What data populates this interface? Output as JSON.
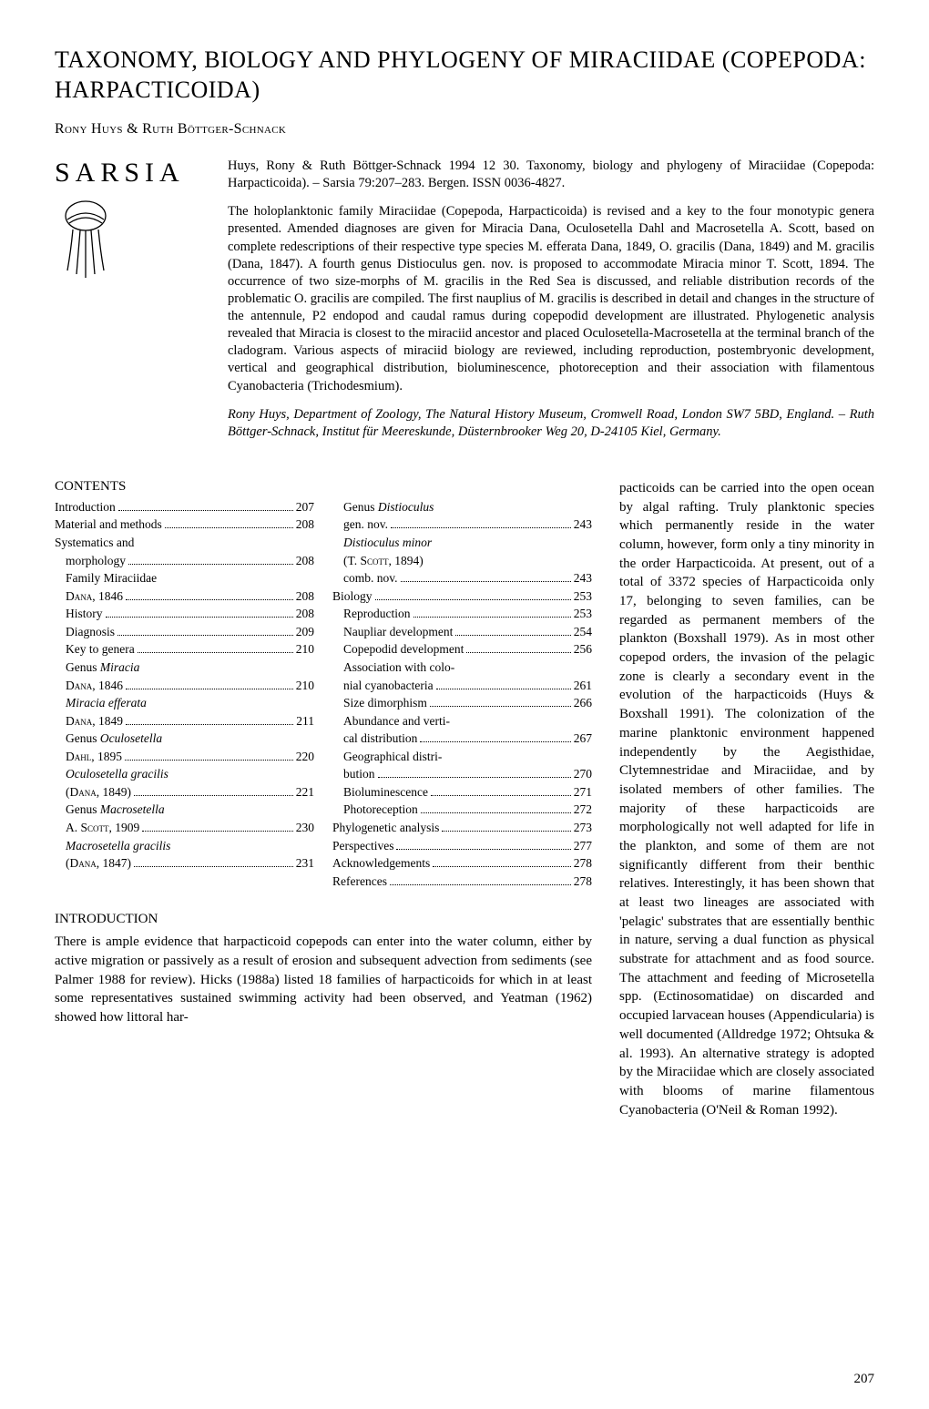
{
  "title": "TAXONOMY, BIOLOGY AND PHYLOGENY OF MIRACIIDAE (COPEPODA: HARPACTICOIDA)",
  "authors": "Rony Huys & Ruth Böttger-Schnack",
  "journal_label": "SARSIA",
  "abstract_cite": "Huys, Rony & Ruth Böttger-Schnack 1994 12 30. Taxonomy, biology and phylogeny of Miraciidae (Copepoda: Harpacticoida). – Sarsia 79:207–283. Bergen. ISSN 0036-4827.",
  "abstract_body": "The holoplanktonic family Miraciidae (Copepoda, Harpacticoida) is revised and a key to the four monotypic genera presented. Amended diagnoses are given for Miracia Dana, Oculosetella Dahl and Macrosetella A. Scott, based on complete redescriptions of their respective type species M. efferata Dana, 1849, O. gracilis (Dana, 1849) and M. gracilis (Dana, 1847). A fourth genus Distioculus gen. nov. is proposed to accommodate Miracia minor T. Scott, 1894. The occurrence of two size-morphs of M. gracilis in the Red Sea is discussed, and reliable distribution records of the problematic O. gracilis are compiled. The first nauplius of M. gracilis is described in detail and changes in the structure of the antennule, P2 endopod and caudal ramus during copepodid development are illustrated. Phylogenetic analysis revealed that Miracia is closest to the miraciid ancestor and placed Oculosetella-Macrosetella at the terminal branch of the cladogram. Various aspects of miraciid biology are reviewed, including reproduction, postembryonic development, vertical and geographical distribution, bioluminescence, photoreception and their association with filamentous Cyanobacteria (Trichodesmium).",
  "affiliation": "Rony Huys, Department of Zoology, The Natural History Museum, Cromwell Road, London SW7 5BD, England. – Ruth Böttger-Schnack, Institut für Meereskunde, Düsternbrooker Weg 20, D-24105 Kiel, Germany.",
  "contents_heading": "CONTENTS",
  "toc_left": [
    {
      "label": "Introduction",
      "page": "207",
      "indent": 0
    },
    {
      "label": "Material and methods",
      "page": "208",
      "indent": 0
    },
    {
      "label": "Systematics and",
      "page": "",
      "indent": 0,
      "nopg": true
    },
    {
      "label": "morphology",
      "page": "208",
      "indent": 1
    },
    {
      "label": "Family Miraciidae",
      "page": "",
      "indent": 1,
      "nopg": true
    },
    {
      "label": "Dana, 1846",
      "page": "208",
      "indent": 1,
      "sc": true
    },
    {
      "label": "History",
      "page": "208",
      "indent": 1
    },
    {
      "label": "Diagnosis",
      "page": "209",
      "indent": 1
    },
    {
      "label": "Key to genera",
      "page": "210",
      "indent": 1
    },
    {
      "label": "Genus Miracia",
      "page": "",
      "indent": 1,
      "nopg": true,
      "ital_tail": "Miracia"
    },
    {
      "label": "Dana, 1846",
      "page": "210",
      "indent": 1,
      "sc": true
    },
    {
      "label": "Miracia efferata",
      "page": "",
      "indent": 1,
      "nopg": true,
      "ital": true
    },
    {
      "label": "Dana, 1849",
      "page": "211",
      "indent": 1,
      "sc": true
    },
    {
      "label": "Genus Oculosetella",
      "page": "",
      "indent": 1,
      "nopg": true,
      "ital_tail": "Oculosetella"
    },
    {
      "label": "Dahl, 1895",
      "page": "220",
      "indent": 1,
      "sc": true
    },
    {
      "label": "Oculosetella gracilis",
      "page": "",
      "indent": 1,
      "nopg": true,
      "ital": true
    },
    {
      "label": "(Dana, 1849)",
      "page": "221",
      "indent": 1,
      "sc": true
    },
    {
      "label": "Genus Macrosetella",
      "page": "",
      "indent": 1,
      "nopg": true,
      "ital_tail": "Macrosetella"
    },
    {
      "label": "A. Scott, 1909",
      "page": "230",
      "indent": 1,
      "sc": true
    },
    {
      "label": "Macrosetella gracilis",
      "page": "",
      "indent": 1,
      "nopg": true,
      "ital": true
    },
    {
      "label": "(Dana, 1847)",
      "page": "231",
      "indent": 1,
      "sc": true
    }
  ],
  "toc_right": [
    {
      "label": "Genus Distioculus",
      "page": "",
      "indent": 1,
      "nopg": true,
      "ital_tail": "Distioculus"
    },
    {
      "label": "gen. nov.",
      "page": "243",
      "indent": 1
    },
    {
      "label": "Distioculus minor",
      "page": "",
      "indent": 1,
      "nopg": true,
      "ital": true
    },
    {
      "label": "(T. Scott, 1894)",
      "page": "",
      "indent": 1,
      "nopg": true,
      "sc": true
    },
    {
      "label": "comb. nov.",
      "page": "243",
      "indent": 1
    },
    {
      "label": "Biology",
      "page": "253",
      "indent": 0
    },
    {
      "label": "Reproduction",
      "page": "253",
      "indent": 1
    },
    {
      "label": "Naupliar development",
      "page": "254",
      "indent": 1
    },
    {
      "label": "Copepodid development",
      "page": "256",
      "indent": 1
    },
    {
      "label": "Association with colo-",
      "page": "",
      "indent": 1,
      "nopg": true
    },
    {
      "label": "nial cyanobacteria",
      "page": "261",
      "indent": 1
    },
    {
      "label": "Size dimorphism",
      "page": "266",
      "indent": 1
    },
    {
      "label": "Abundance and verti-",
      "page": "",
      "indent": 1,
      "nopg": true
    },
    {
      "label": "cal distribution",
      "page": "267",
      "indent": 1
    },
    {
      "label": "Geographical distri-",
      "page": "",
      "indent": 1,
      "nopg": true
    },
    {
      "label": "bution",
      "page": "270",
      "indent": 1
    },
    {
      "label": "Bioluminescence",
      "page": "271",
      "indent": 1
    },
    {
      "label": "Photoreception",
      "page": "272",
      "indent": 1
    },
    {
      "label": "Phylogenetic analysis",
      "page": "273",
      "indent": 0
    },
    {
      "label": "Perspectives",
      "page": "277",
      "indent": 0
    },
    {
      "label": "Acknowledgements",
      "page": "278",
      "indent": 0
    },
    {
      "label": "References",
      "page": "278",
      "indent": 0
    }
  ],
  "intro_heading": "INTRODUCTION",
  "intro_para": "There is ample evidence that harpacticoid copepods can enter into the water column, either by active migration or passively as a result of erosion and subsequent advection from sediments (see Palmer 1988 for review). Hicks (1988a) listed 18 families of harpacticoids for which in at least some representatives sustained swimming activity had been observed, and Yeatman (1962) showed how littoral har-",
  "right_para": "pacticoids can be carried into the open ocean by algal rafting. Truly planktonic species which permanently reside in the water column, however, form only a tiny minority in the order Harpacticoida. At present, out of a total of 3372 species of Harpacticoida only 17, belonging to seven families, can be regarded as permanent members of the plankton (Boxshall 1979). As in most other copepod orders, the invasion of the pelagic zone is clearly a secondary event in the evolution of the harpacticoids (Huys & Boxshall 1991). The colonization of the marine planktonic environment happened independently by the Aegisthidae, Clytemnestridae and Miraciidae, and by isolated members of other families. The majority of these harpacticoids are morphologically not well adapted for life in the plankton, and some of them are not significantly different from their benthic relatives. Interestingly, it has been shown that at least two lineages are associated with 'pelagic' substrates that are essentially benthic in nature, serving a dual function as physical substrate for attachment and as food source. The attachment and feeding of Microsetella spp. (Ectinosomatidae) on discarded and occupied larvacean houses (Appendicularia) is well documented (Alldredge 1972; Ohtsuka & al. 1993). An alternative strategy is adopted by the Miraciidae which are closely associated with blooms of marine filamentous Cyanobacteria (O'Neil & Roman 1992).",
  "page_number": "207",
  "colors": {
    "bg": "#ffffff",
    "text": "#000000"
  }
}
